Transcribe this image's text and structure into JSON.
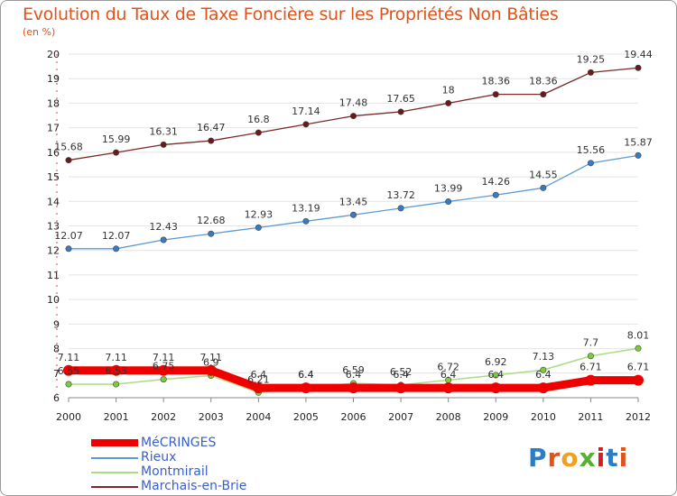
{
  "header": {
    "title": "Evolution du Taux de Taxe Foncière sur les Propriétés Non Bâties",
    "unit": "(en %)"
  },
  "logo": {
    "text": "Proxiti",
    "letters": [
      {
        "ch": "P",
        "color": "#2e7cc4"
      },
      {
        "ch": "r",
        "color": "#e0531a"
      },
      {
        "ch": "o",
        "color": "#f0a020"
      },
      {
        "ch": "x",
        "color": "#58b030"
      },
      {
        "ch": "i",
        "color": "#d02020"
      },
      {
        "ch": "t",
        "color": "#2e7cc4"
      },
      {
        "ch": "i",
        "color": "#e0531a"
      }
    ]
  },
  "chart_data": {
    "type": "line",
    "title": "Evolution du Taux de Taxe Foncière sur les Propriétés Non Bâties",
    "ylabel": "(en %)",
    "xlabel": "",
    "categories": [
      "2000",
      "2001",
      "2002",
      "2003",
      "2004",
      "2005",
      "2006",
      "2007",
      "2008",
      "2009",
      "2010",
      "2011",
      "2012"
    ],
    "ylim": [
      6,
      20
    ],
    "yticks": [
      6,
      7,
      8,
      9,
      10,
      11,
      12,
      13,
      14,
      15,
      16,
      17,
      18,
      19,
      20
    ],
    "grid": "horizontal",
    "legend_position": "bottom-left",
    "series": [
      {
        "name": "Marchais-en-Brie",
        "color": "#7a2a2a",
        "marker": "#6b1a1a",
        "width": 1.3,
        "values": [
          15.68,
          15.99,
          16.31,
          16.47,
          16.8,
          17.14,
          17.48,
          17.65,
          18,
          18.36,
          18.36,
          19.25,
          19.44
        ],
        "labels": [
          "15.68",
          "15.99",
          "16.31",
          "16.47",
          "16.8",
          "17.14",
          "17.48",
          "17.65",
          "18",
          "18.36",
          "18.36",
          "19.25",
          "19.44"
        ]
      },
      {
        "name": "Rieux",
        "color": "#5b9bd5",
        "marker": "#3a7ac0",
        "width": 1.3,
        "values": [
          12.07,
          12.07,
          12.43,
          12.68,
          12.93,
          13.19,
          13.45,
          13.72,
          13.99,
          14.26,
          14.55,
          15.56,
          15.87
        ],
        "labels": [
          "12.07",
          "12.07",
          "12.43",
          "12.68",
          "12.93",
          "13.19",
          "13.45",
          "13.72",
          "13.99",
          "14.26",
          "14.55",
          "15.56",
          "15.87"
        ]
      },
      {
        "name": "Montmirail",
        "color": "#a8de82",
        "marker": "#7ccc3c",
        "width": 1.5,
        "values": [
          6.55,
          6.55,
          6.75,
          6.9,
          6.21,
          6.4,
          6.59,
          6.52,
          6.72,
          6.92,
          7.13,
          7.7,
          8.01
        ],
        "labels": [
          "6.55",
          "6.55",
          "6.75",
          "6.9",
          "6.21",
          "6.4",
          "6.59",
          "6.52",
          "6.72",
          "6.92",
          "7.13",
          "7.7",
          "8.01"
        ]
      },
      {
        "name": "MéCRINGES",
        "color": "#ee0000",
        "marker": "#ee0000",
        "width": 9,
        "values": [
          7.11,
          7.11,
          7.11,
          7.11,
          6.4,
          6.4,
          6.4,
          6.4,
          6.4,
          6.4,
          6.4,
          6.71,
          6.71
        ],
        "labels": [
          "7.11",
          "7.11",
          "7.11",
          "7.11",
          "6.4",
          "6.4",
          "6.4",
          "6.4",
          "6.4",
          "6.4",
          "6.4",
          "6.71",
          "6.71"
        ]
      }
    ]
  }
}
